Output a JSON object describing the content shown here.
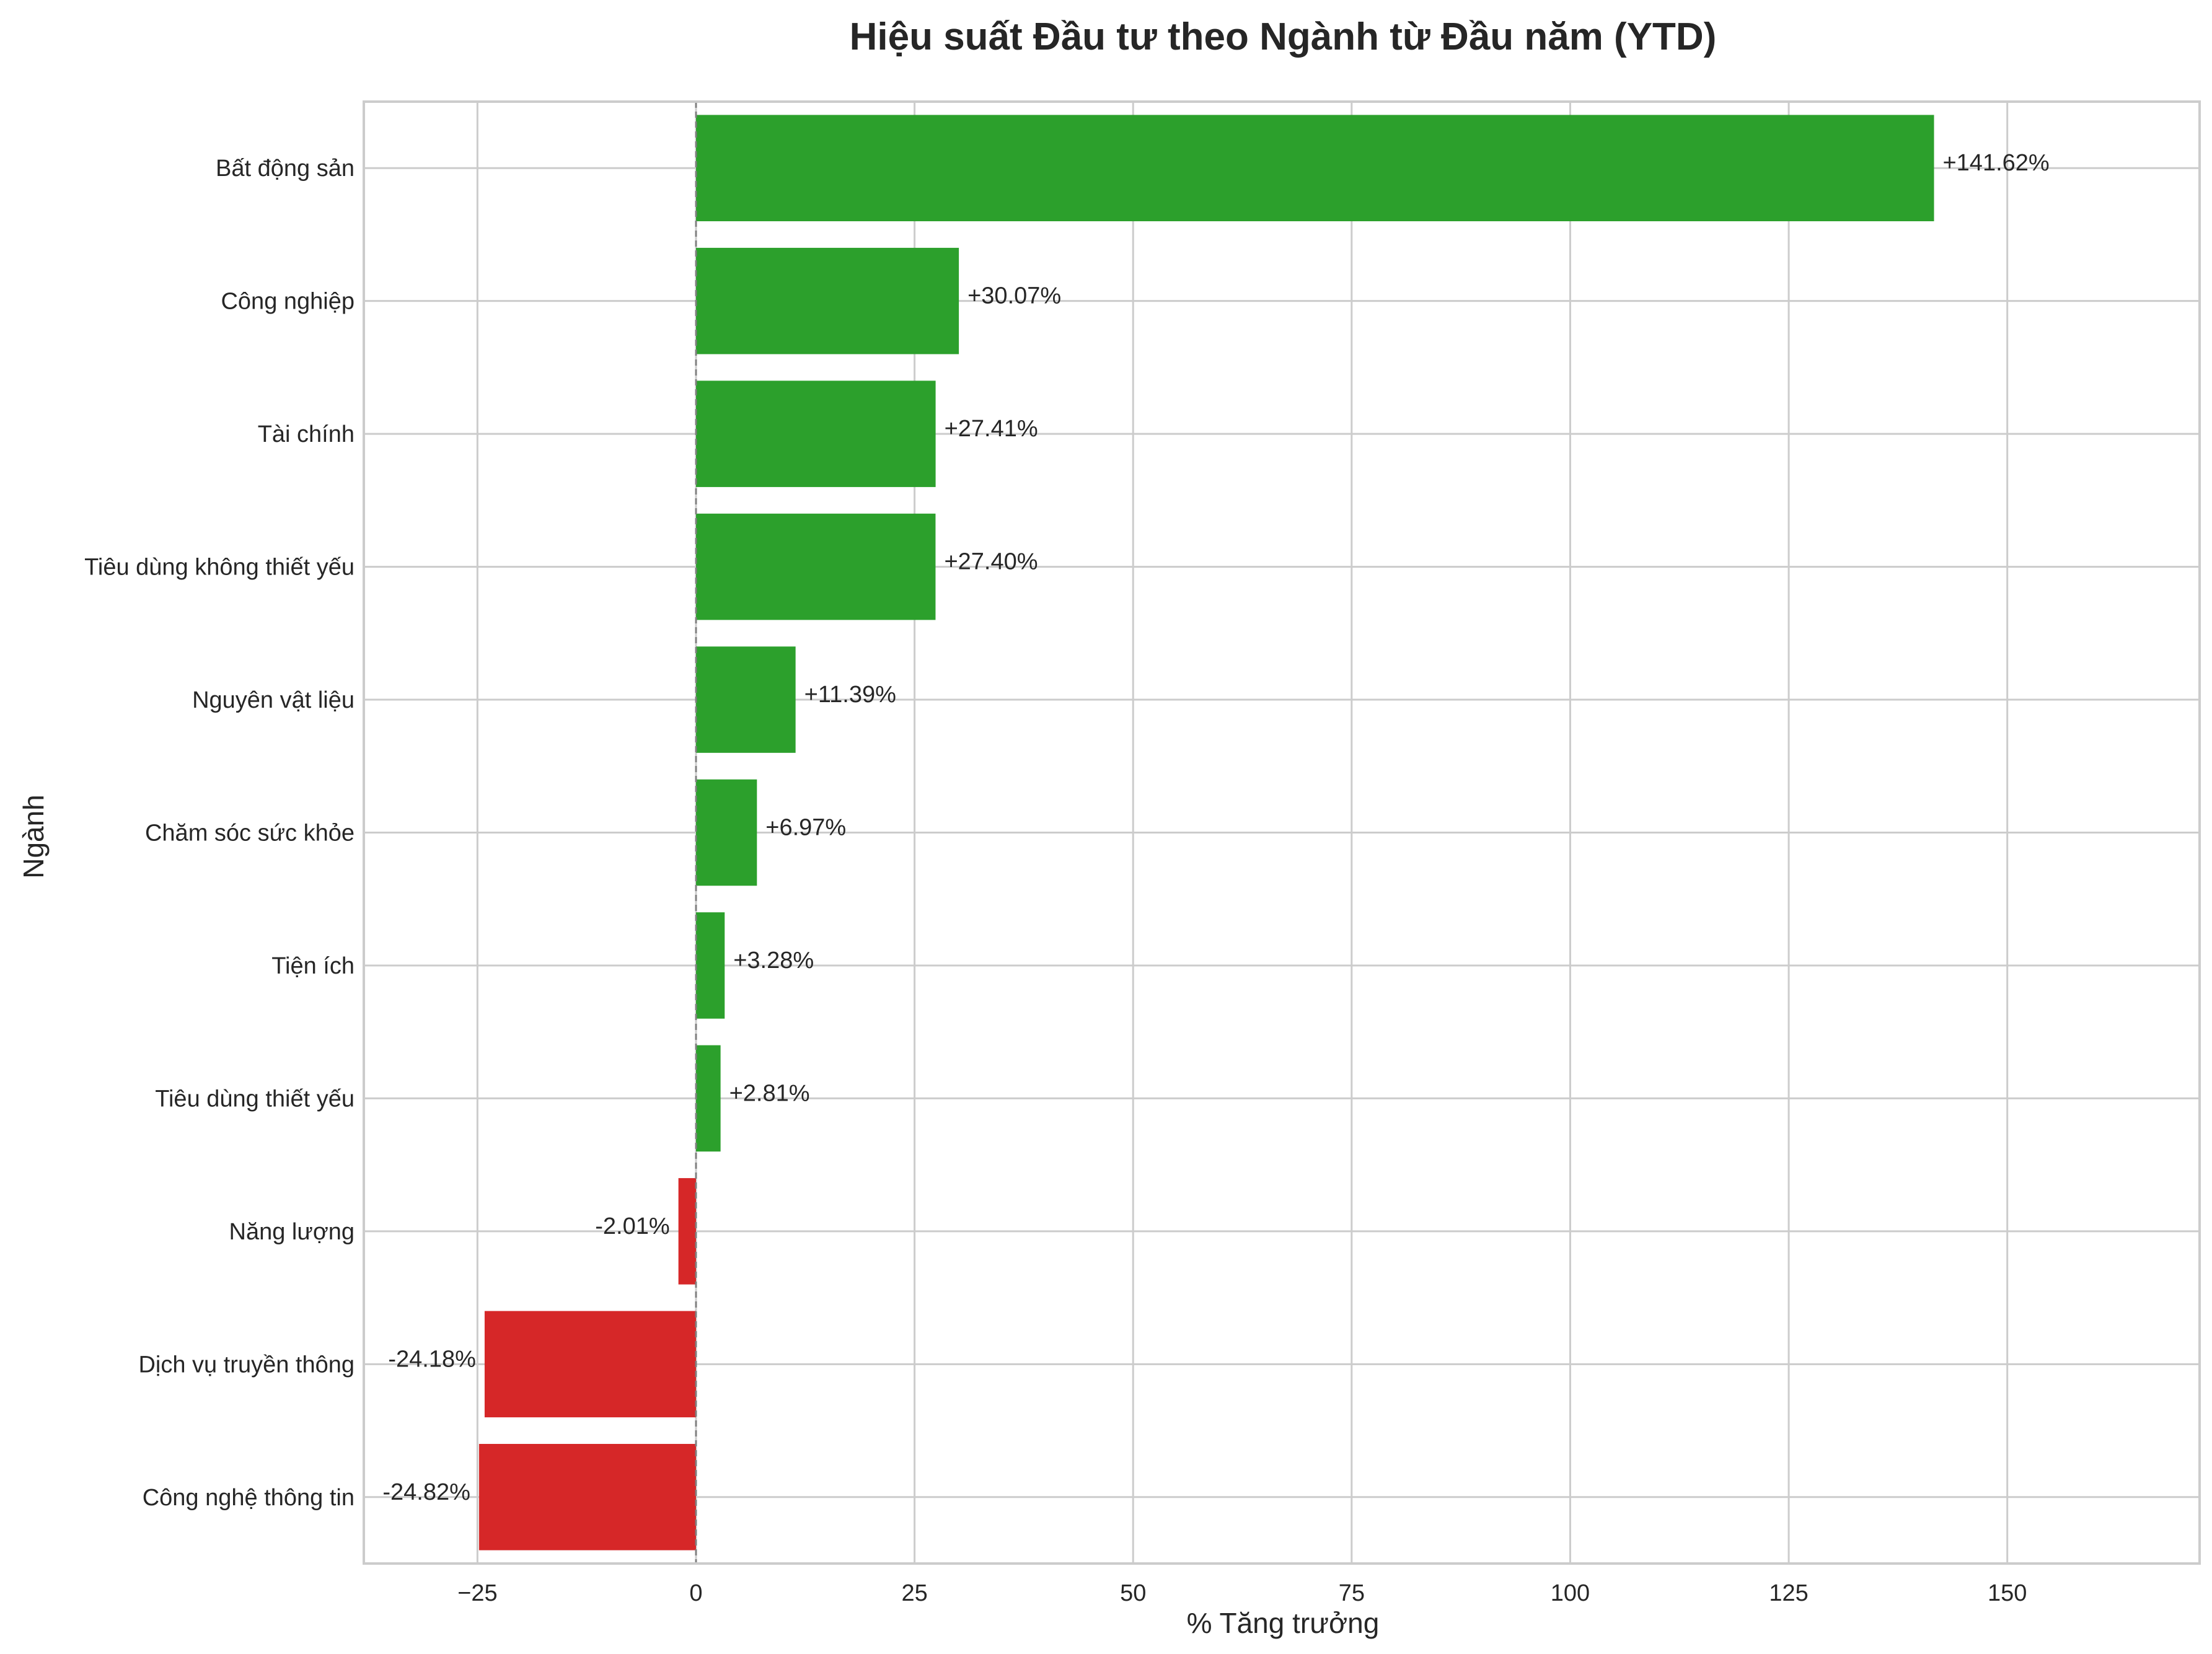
{
  "chart_data": {
    "type": "bar",
    "orientation": "horizontal",
    "title": "Hiệu suất Đầu tư theo Ngành từ Đầu năm (YTD)",
    "xlabel": "% Tăng trưởng",
    "ylabel": "Ngành",
    "xlim": [
      -38,
      172
    ],
    "xticks": [
      -25,
      0,
      25,
      50,
      75,
      100,
      125,
      150
    ],
    "xtick_labels": [
      "−25",
      "0",
      "25",
      "50",
      "75",
      "100",
      "125",
      "150"
    ],
    "grid": true,
    "zero_line": "dashed",
    "categories": [
      "Bất động sản",
      "Công nghiệp",
      "Tài chính",
      "Tiêu dùng không thiết yếu",
      "Nguyên vật liệu",
      "Chăm sóc sức khỏe",
      "Tiện ích",
      "Tiêu dùng thiết yếu",
      "Năng lượng",
      "Dịch vụ truyền thông",
      "Công nghệ thông tin"
    ],
    "values": [
      141.62,
      30.07,
      27.41,
      27.4,
      11.39,
      6.97,
      3.28,
      2.81,
      -2.01,
      -24.18,
      -24.82
    ],
    "value_labels": [
      "+141.62%",
      "+30.07%",
      "+27.41%",
      "+27.40%",
      "+11.39%",
      "+6.97%",
      "+3.28%",
      "+2.81%",
      "-2.01%",
      "-24.18%",
      "-24.82%"
    ],
    "colors": {
      "positive": "#2ca02c",
      "negative": "#d62728",
      "grid": "#cccccc",
      "frame": "#cccccc",
      "zero_line": "#808080",
      "text": "#262626"
    }
  }
}
